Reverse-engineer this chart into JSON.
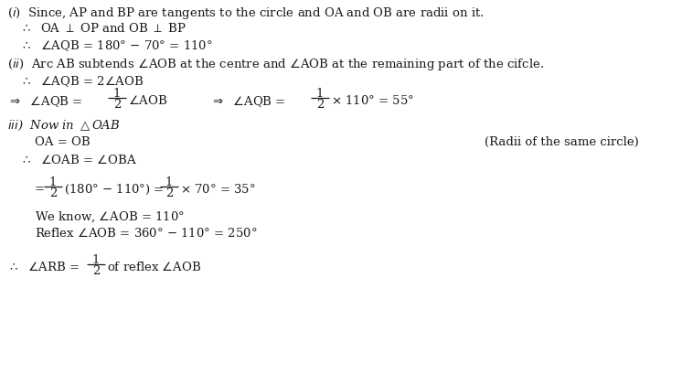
{
  "background_color": "#ffffff",
  "text_color": "#1a1a1a",
  "figsize": [
    7.46,
    4.21
  ],
  "dpi": 100,
  "font_size": 9.5
}
